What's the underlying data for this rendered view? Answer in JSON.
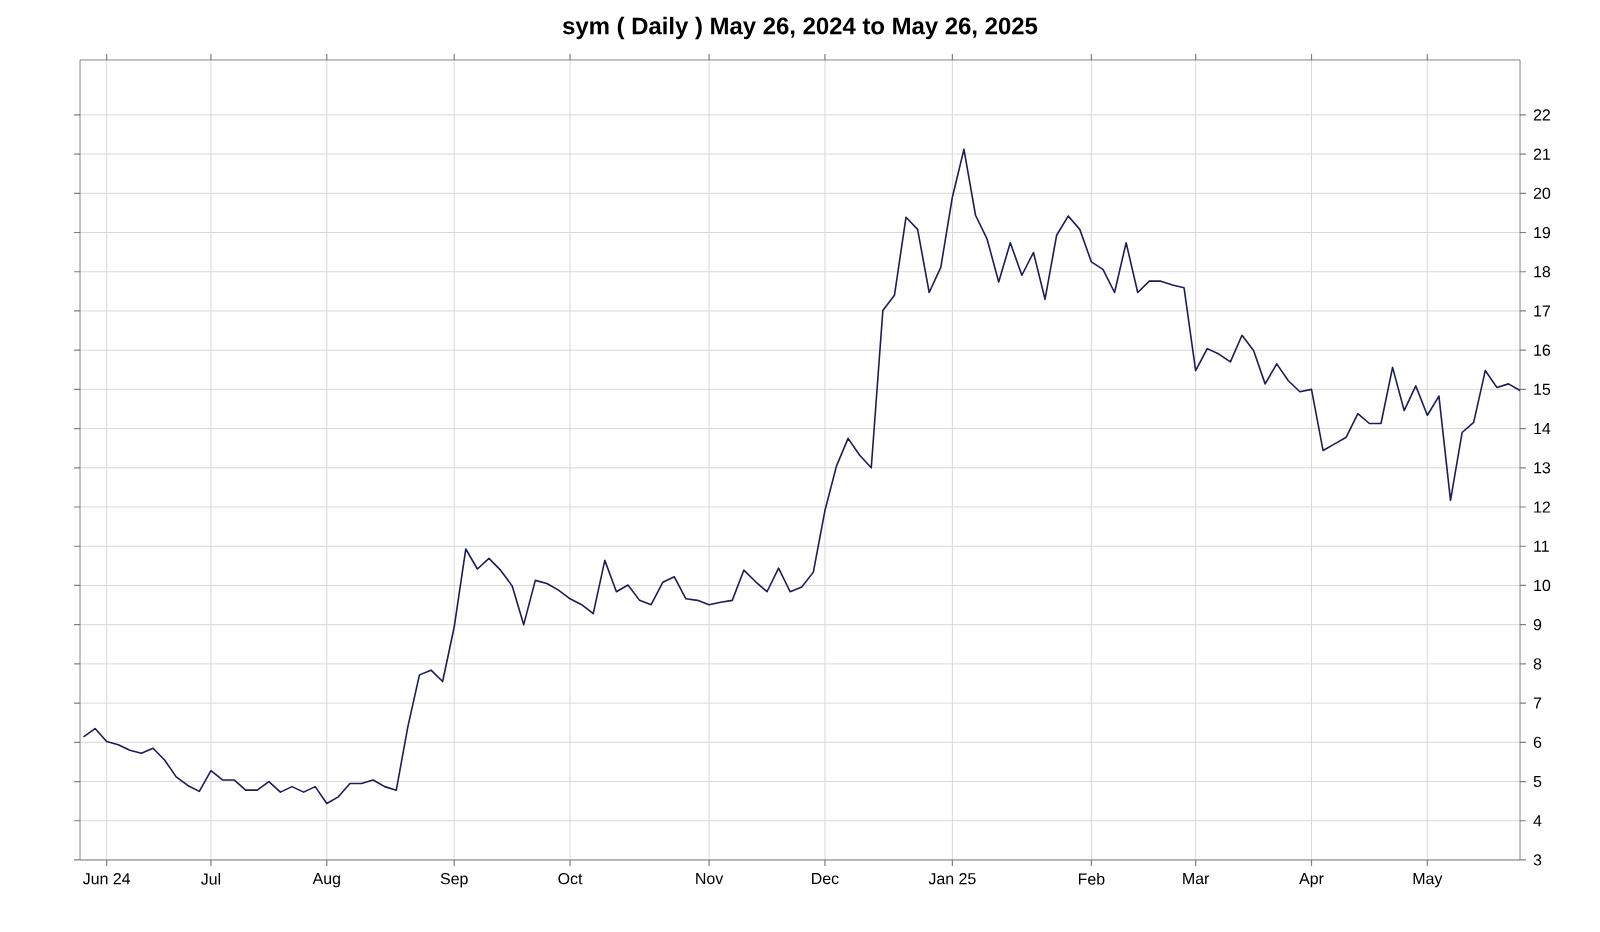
{
  "chart_data": {
    "type": "line",
    "title": "sym ( Daily ) May 26, 2024 to May 26, 2025",
    "categories": [
      null,
      null,
      "Jun 24",
      null,
      null,
      null,
      null,
      null,
      null,
      null,
      null,
      "Jul",
      null,
      null,
      null,
      null,
      null,
      null,
      null,
      null,
      null,
      "Aug",
      null,
      null,
      null,
      null,
      null,
      null,
      null,
      null,
      null,
      null,
      "Sep",
      null,
      null,
      null,
      null,
      null,
      null,
      null,
      null,
      null,
      "Oct",
      null,
      null,
      null,
      null,
      null,
      null,
      null,
      null,
      null,
      null,
      null,
      "Nov",
      null,
      null,
      null,
      null,
      null,
      null,
      null,
      null,
      null,
      "Dec",
      null,
      null,
      null,
      null,
      null,
      null,
      null,
      null,
      null,
      null,
      "Jan 25",
      null,
      null,
      null,
      null,
      null,
      null,
      null,
      null,
      null,
      null,
      null,
      "Feb",
      null,
      null,
      null,
      null,
      null,
      null,
      null,
      null,
      "Mar",
      null,
      null,
      null,
      null,
      null,
      null,
      null,
      null,
      null,
      "Apr",
      null,
      null,
      null,
      null,
      null,
      null,
      null,
      null,
      null,
      "May",
      null,
      null,
      null,
      null,
      null,
      null,
      null,
      null
    ],
    "values": [
      6.14,
      6.35,
      6.02,
      5.94,
      5.8,
      5.72,
      5.85,
      5.55,
      5.12,
      4.9,
      4.75,
      5.28,
      5.04,
      5.04,
      4.78,
      4.78,
      5.0,
      4.73,
      4.87,
      4.73,
      4.87,
      4.44,
      4.61,
      4.95,
      4.95,
      5.04,
      4.87,
      4.78,
      6.4,
      7.72,
      7.84,
      7.55,
      8.94,
      10.93,
      10.42,
      10.69,
      10.39,
      9.99,
      9.0,
      10.13,
      10.05,
      9.88,
      9.66,
      9.51,
      9.28,
      10.64,
      9.84,
      10.01,
      9.62,
      9.51,
      10.08,
      10.22,
      9.66,
      9.62,
      9.51,
      9.57,
      9.62,
      10.39,
      10.1,
      9.84,
      10.44,
      9.84,
      9.96,
      10.34,
      11.91,
      13.05,
      13.75,
      13.32,
      13.0,
      17.01,
      17.4,
      19.39,
      19.08,
      17.47,
      18.11,
      19.9,
      21.12,
      19.44,
      18.83,
      17.74,
      18.74,
      17.91,
      18.49,
      17.3,
      18.93,
      19.42,
      19.08,
      18.25,
      18.06,
      17.47,
      18.74,
      17.47,
      17.76,
      17.76,
      17.66,
      17.59,
      15.48,
      16.04,
      15.9,
      15.7,
      16.38,
      15.99,
      15.14,
      15.65,
      15.22,
      14.94,
      15.0,
      13.44,
      13.61,
      13.78,
      14.38,
      14.13,
      14.13,
      15.56,
      14.46,
      15.09,
      14.34,
      14.83,
      12.17,
      13.9,
      14.16,
      15.48,
      15.05,
      15.14,
      14.97
    ],
    "color": "#1c1c5a",
    "ylim": [
      3,
      23.4
    ],
    "yticks": [
      3,
      4,
      5,
      6,
      7,
      8,
      9,
      10,
      11,
      12,
      13,
      14,
      15,
      16,
      17,
      18,
      19,
      20,
      21,
      22
    ],
    "grid": true
  }
}
